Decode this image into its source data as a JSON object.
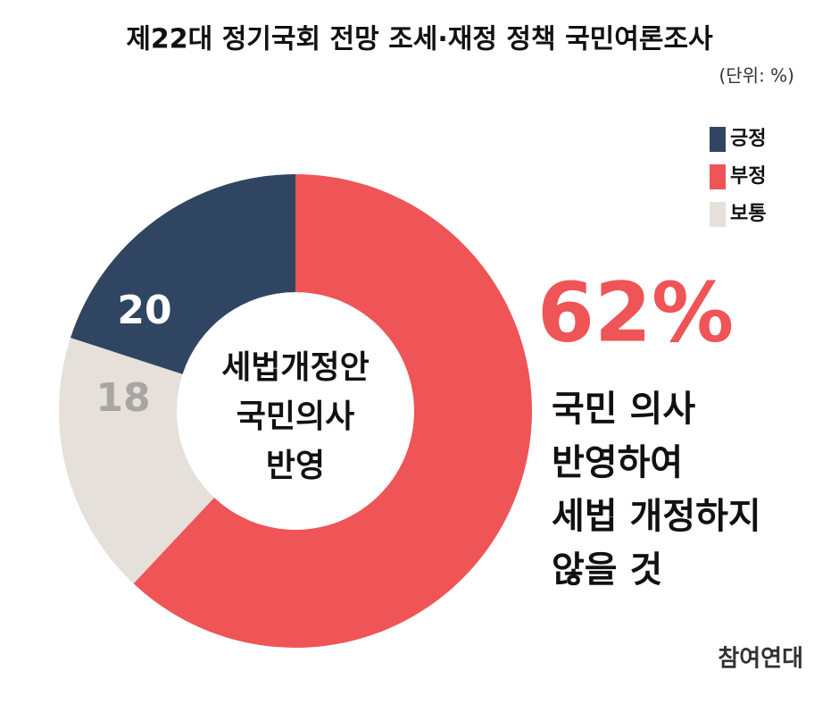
{
  "chart_data": {
    "type": "pie",
    "title": "제22대 정기국회 전망 조세·재정 정책 국민여론조사",
    "subtitle": "(단위: %)",
    "categories": [
      "긍정",
      "부정",
      "보통"
    ],
    "values": [
      20,
      62,
      18
    ],
    "value_labels": [
      "20",
      "62%",
      "18"
    ],
    "colors": [
      "#2f4561",
      "#ef5456",
      "#e6e0da"
    ],
    "center_label": [
      "세법개정안",
      "국민의사",
      "반영"
    ],
    "annotation": [
      "국민 의사",
      "반영하여",
      "세법 개정하지",
      "않을 것"
    ],
    "source": "참여연대",
    "legend": "top-right"
  }
}
